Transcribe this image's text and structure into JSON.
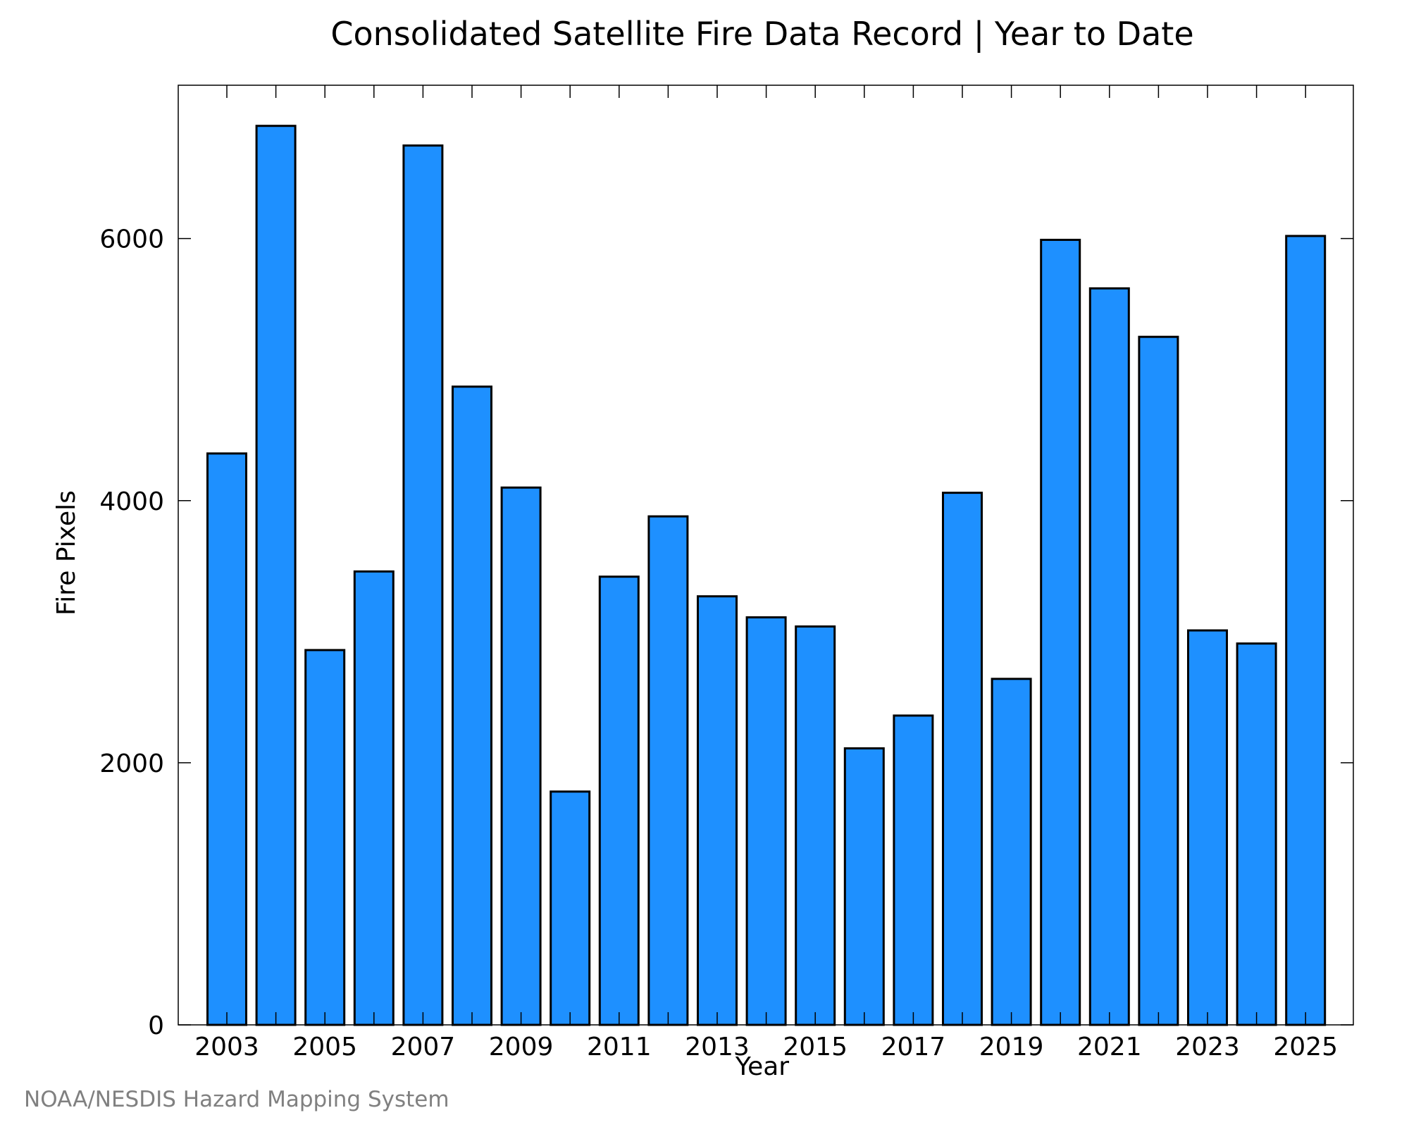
{
  "colors": {
    "bar_fill": "#1e90ff",
    "bar_stroke": "#000000",
    "axis": "#000000",
    "credit": "#808080"
  },
  "credit": "NOAA/NESDIS Hazard Mapping System",
  "chart_data": {
    "type": "bar",
    "title": "Consolidated Satellite Fire Data Record | Year to Date",
    "xlabel": "Year",
    "ylabel": "Fire Pixels",
    "categories": [
      "2003",
      "2004",
      "2005",
      "2006",
      "2007",
      "2008",
      "2009",
      "2010",
      "2011",
      "2012",
      "2013",
      "2014",
      "2015",
      "2016",
      "2017",
      "2018",
      "2019",
      "2020",
      "2021",
      "2022",
      "2023",
      "2024",
      "2025"
    ],
    "values": [
      4360,
      6860,
      2860,
      3460,
      6710,
      4870,
      4100,
      1780,
      3420,
      3880,
      3270,
      3110,
      3040,
      2110,
      2360,
      4060,
      2640,
      5990,
      5620,
      5250,
      3010,
      2910,
      6020
    ],
    "x_tick_labels": [
      "2003",
      "2005",
      "2007",
      "2009",
      "2011",
      "2013",
      "2015",
      "2017",
      "2019",
      "2021",
      "2023",
      "2025"
    ],
    "y_ticks": [
      0,
      2000,
      4000,
      6000
    ],
    "ylim": [
      0,
      7170
    ],
    "grid": false,
    "legend": "none"
  }
}
